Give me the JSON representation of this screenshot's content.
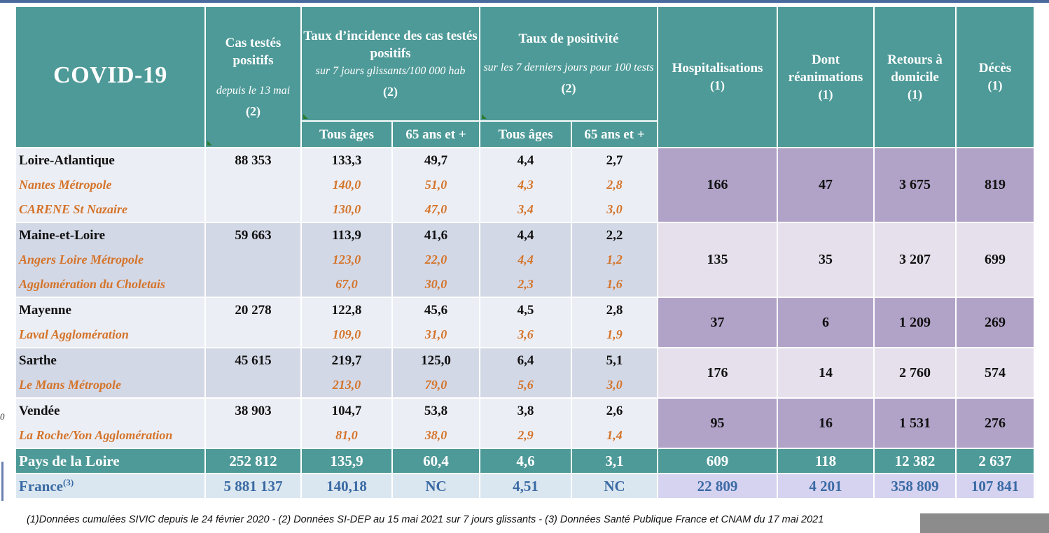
{
  "table": {
    "title": "COVID-19",
    "headers": {
      "cas": {
        "label": "Cas testés positifs",
        "sub": "depuis le 13 mai",
        "note": "(2)"
      },
      "incidence": {
        "label": "Taux d’incidence des cas testés positifs",
        "sub": "sur 7 jours glissants/100 000 hab",
        "note": "(2)"
      },
      "positivite": {
        "label": "Taux de positivité",
        "sub": "sur les 7 derniers jours pour 100 tests",
        "note": "(2)"
      },
      "hosp": {
        "label": "Hospitalisations",
        "note": "(1)"
      },
      "rea": {
        "label": "Dont réanimations",
        "note": "(1)"
      },
      "retours": {
        "label": "Retours à domicile",
        "note": "(1)"
      },
      "deces": {
        "label": "Décès",
        "note": "(1)"
      },
      "tous_ages": "Tous âges",
      "plus65": "65 ans et +"
    },
    "groups": [
      {
        "rows": [
          {
            "name": "Loire-Atlantique",
            "cas": "88 353",
            "inc_all": "133,3",
            "inc_65": "49,7",
            "pos_all": "4,4",
            "pos_65": "2,7",
            "city": false
          },
          {
            "name": "Nantes Métropole",
            "cas": "",
            "inc_all": "140,0",
            "inc_65": "51,0",
            "pos_all": "4,3",
            "pos_65": "2,8",
            "city": true
          },
          {
            "name": "CARENE St Nazaire",
            "cas": "",
            "inc_all": "130,0",
            "inc_65": "47,0",
            "pos_all": "3,4",
            "pos_65": "3,0",
            "city": true
          }
        ],
        "hosp": "166",
        "rea": "47",
        "retours": "3 675",
        "deces": "819"
      },
      {
        "rows": [
          {
            "name": "Maine-et-Loire",
            "cas": "59 663",
            "inc_all": "113,9",
            "inc_65": "41,6",
            "pos_all": "4,4",
            "pos_65": "2,2",
            "city": false
          },
          {
            "name": "Angers Loire Métropole",
            "cas": "",
            "inc_all": "123,0",
            "inc_65": "22,0",
            "pos_all": "4,4",
            "pos_65": "1,2",
            "city": true
          },
          {
            "name": "Agglomération du Choletais",
            "cas": "",
            "inc_all": "67,0",
            "inc_65": "30,0",
            "pos_all": "2,3",
            "pos_65": "1,6",
            "city": true
          }
        ],
        "hosp": "135",
        "rea": "35",
        "retours": "3 207",
        "deces": "699"
      },
      {
        "rows": [
          {
            "name": "Mayenne",
            "cas": "20 278",
            "inc_all": "122,8",
            "inc_65": "45,6",
            "pos_all": "4,5",
            "pos_65": "2,8",
            "city": false
          },
          {
            "name": "Laval Agglomération",
            "cas": "",
            "inc_all": "109,0",
            "inc_65": "31,0",
            "pos_all": "3,6",
            "pos_65": "1,9",
            "city": true
          }
        ],
        "hosp": "37",
        "rea": "6",
        "retours": "1 209",
        "deces": "269"
      },
      {
        "rows": [
          {
            "name": "Sarthe",
            "cas": "45 615",
            "inc_all": "219,7",
            "inc_65": "125,0",
            "pos_all": "6,4",
            "pos_65": "5,1",
            "city": false
          },
          {
            "name": "Le Mans Métropole",
            "cas": "",
            "inc_all": "213,0",
            "inc_65": "79,0",
            "pos_all": "5,6",
            "pos_65": "3,0",
            "city": true
          }
        ],
        "hosp": "176",
        "rea": "14",
        "retours": "2 760",
        "deces": "574"
      },
      {
        "rows": [
          {
            "name": "Vendée",
            "cas": "38 903",
            "inc_all": "104,7",
            "inc_65": "53,8",
            "pos_all": "3,8",
            "pos_65": "2,6",
            "city": false
          },
          {
            "name": "La Roche/Yon  Agglomération",
            "cas": "",
            "inc_all": "81,0",
            "inc_65": "38,0",
            "pos_all": "2,9",
            "pos_65": "1,4",
            "city": true
          }
        ],
        "hosp": "95",
        "rea": "16",
        "retours": "1 531",
        "deces": "276"
      }
    ],
    "total": {
      "name": "Pays de la Loire",
      "cas": "252 812",
      "inc_all": "135,9",
      "inc_65": "60,4",
      "pos_all": "4,6",
      "pos_65": "3,1",
      "hosp": "609",
      "rea": "118",
      "retours": "12 382",
      "deces": "2 637"
    },
    "france": {
      "name": "France",
      "sup": "(3)",
      "cas": "5 881 137",
      "inc_all": "140,18",
      "inc_65": "NC",
      "pos_all": "4,51",
      "pos_65": "NC",
      "hosp": "22 809",
      "rea": "4 201",
      "retours": "358 809",
      "deces": "107 841"
    }
  },
  "footer": "(1)Données cumulées SIVIC depuis le 24 février 2020 -  (2) Données SI-DEP au 15 mai 2021 sur 7 jours glissants - (3) Données Santé Publique France et CNAM du 17 mai 2021",
  "side_mark": "0"
}
